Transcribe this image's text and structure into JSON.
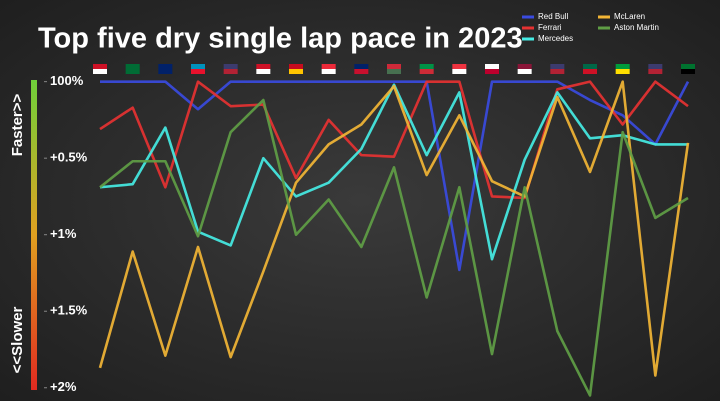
{
  "chart_data": {
    "type": "line",
    "title": "Top five dry single lap pace in 2023",
    "y_axis_top_label": "Faster>>",
    "y_axis_bottom_label": "<<Slower",
    "categories": [
      null,
      null,
      null,
      null,
      null,
      null,
      null,
      null,
      null,
      null,
      null,
      null,
      null,
      null,
      null,
      null,
      null,
      null,
      null
    ],
    "series": [
      {
        "name": "Red Bull",
        "color": "#3a4be0",
        "values": [
          0,
          0,
          0,
          0.18,
          0,
          0,
          0,
          0,
          0,
          0,
          0,
          1.23,
          0,
          0,
          0,
          0.12,
          0.22,
          0.41,
          0
        ]
      },
      {
        "name": "Ferrari",
        "color": "#e63232",
        "values": [
          0.31,
          0.17,
          0.69,
          0,
          0.16,
          0.15,
          0.63,
          0.25,
          0.48,
          0.49,
          0,
          0,
          0.75,
          0.76,
          0.05,
          0,
          0.28,
          0,
          0.16
        ]
      },
      {
        "name": "Mercedes",
        "color": "#45ece4",
        "values": [
          0.69,
          0.67,
          0.3,
          0.98,
          1.07,
          0.5,
          0.75,
          0.66,
          0.44,
          0.02,
          0.48,
          0.07,
          1.16,
          0.51,
          0.07,
          0.37,
          0.35,
          0.41,
          0.41
        ]
      },
      {
        "name": "McLaren",
        "color": "#f2b535",
        "values": [
          1.87,
          1.11,
          1.79,
          1.08,
          1.8,
          1.24,
          0.66,
          0.41,
          0.28,
          0.03,
          0.61,
          0.22,
          0.65,
          0.75,
          0.1,
          0.59,
          0,
          1.92,
          0.4
        ]
      },
      {
        "name": "Aston Martin",
        "color": "#5f9e45",
        "values": [
          0.69,
          0.52,
          0.52,
          1.01,
          0.33,
          0.12,
          1.0,
          0.77,
          1.08,
          0.56,
          1.41,
          0.69,
          1.78,
          0.69,
          1.63,
          2.05,
          0.33,
          0.89,
          0.76
        ]
      }
    ],
    "ylim": [
      -0.05,
      2.08
    ],
    "y_inverted": true,
    "yticks": [
      {
        "value": 0,
        "label": "100%"
      },
      {
        "value": 0.5,
        "label": "+0.5%"
      },
      {
        "value": 1,
        "label": "+1%"
      },
      {
        "value": 1.5,
        "label": "+1.5%"
      },
      {
        "value": 2,
        "label": "+2%"
      }
    ],
    "grid": false
  }
}
